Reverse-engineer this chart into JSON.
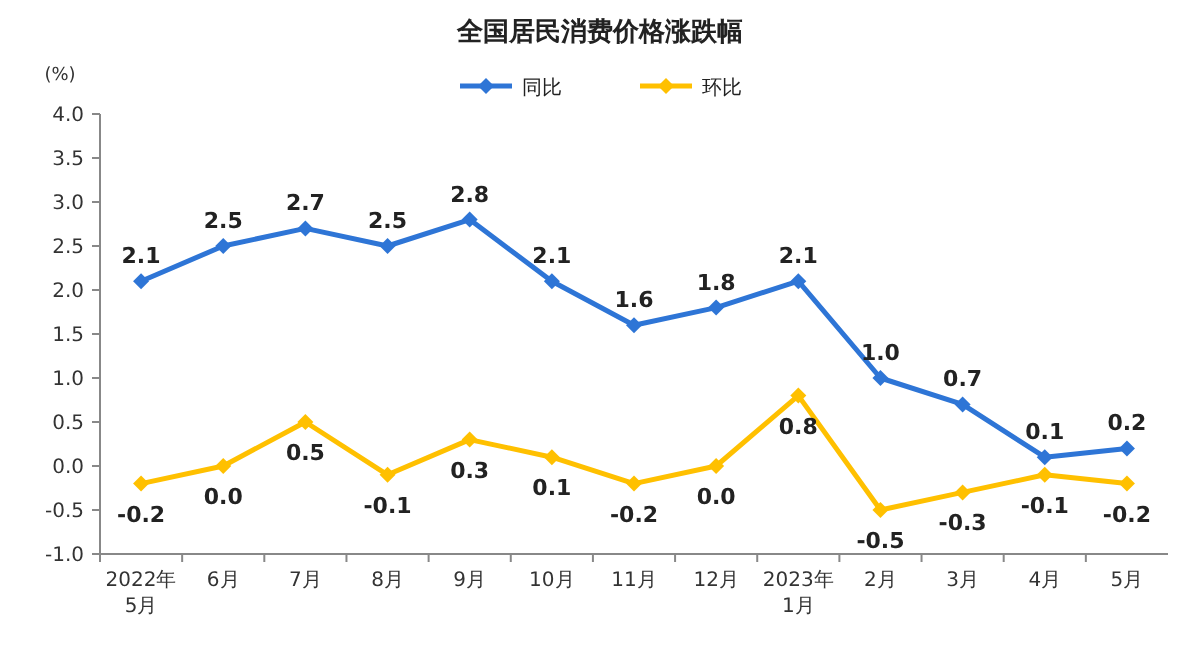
{
  "chart_data": {
    "type": "line",
    "title": "全国居民消费价格涨跌幅",
    "ylabel": "(%)",
    "categories": [
      "2022年5月",
      "6月",
      "7月",
      "8月",
      "9月",
      "10月",
      "11月",
      "12月",
      "2023年1月",
      "2月",
      "3月",
      "4月",
      "5月"
    ],
    "series": [
      {
        "name": "同比",
        "color": "#2e75d6",
        "values": [
          2.1,
          2.5,
          2.7,
          2.5,
          2.8,
          2.1,
          1.6,
          1.8,
          2.1,
          1.0,
          0.7,
          0.1,
          0.2
        ],
        "value_labels": [
          "2.1",
          "2.5",
          "2.7",
          "2.5",
          "2.8",
          "2.1",
          "1.6",
          "1.8",
          "2.1",
          "1.0",
          "0.7",
          "0.1",
          "0.2"
        ]
      },
      {
        "name": "环比",
        "color": "#ffc000",
        "values": [
          -0.2,
          0.0,
          0.5,
          -0.1,
          0.3,
          0.1,
          -0.2,
          0.0,
          0.8,
          -0.5,
          -0.3,
          -0.1,
          -0.2
        ],
        "value_labels": [
          "-0.2",
          "0.0",
          "0.5",
          "-0.1",
          "0.3",
          "0.1",
          "-0.2",
          "0.0",
          "0.8",
          "-0.5",
          "-0.3",
          "-0.1",
          "-0.2"
        ]
      }
    ],
    "ylim": [
      -1,
      4
    ],
    "yticks": [
      {
        "value": -1,
        "label": "-1.0"
      },
      {
        "value": -0.5,
        "label": "-0.5"
      },
      {
        "value": 0,
        "label": "0.0"
      },
      {
        "value": 0.5,
        "label": "0.5"
      },
      {
        "value": 1,
        "label": "1.0"
      },
      {
        "value": 1.5,
        "label": "1.5"
      },
      {
        "value": 2,
        "label": "2.0"
      },
      {
        "value": 2.5,
        "label": "2.5"
      },
      {
        "value": 3,
        "label": "3.0"
      },
      {
        "value": 3.5,
        "label": "3.5"
      },
      {
        "value": 4,
        "label": "4.0"
      }
    ],
    "legend": "top",
    "marker": "diamond",
    "line_style": "solid",
    "grid": false
  }
}
